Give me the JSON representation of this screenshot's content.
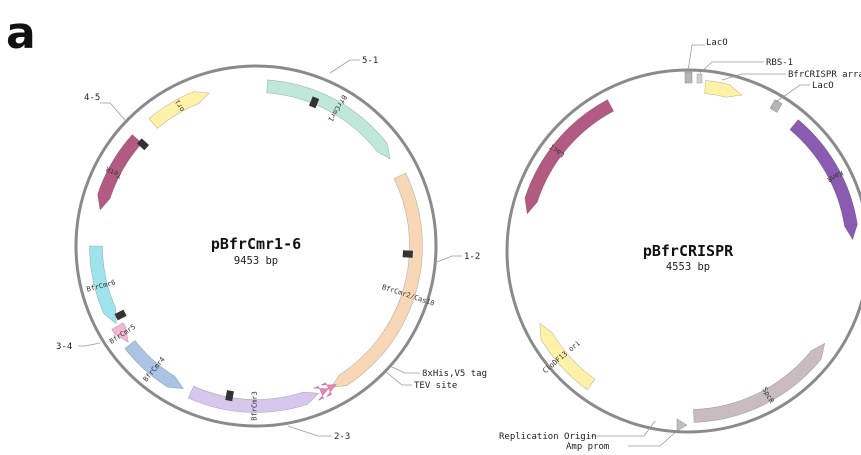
{
  "panel_label": "a",
  "colors": {
    "backbone": "#8a8a8a",
    "BfrCmr1": "#bfe8da",
    "BfrCmr2": "#f7d7b5",
    "BfrCmr3": "#d7c6ee",
    "BfrCmr4": "#a9c4e4",
    "BfrCmr5": "#f4b6d4",
    "BfrCmr6": "#9fe3ee",
    "ori": "#fff2a8",
    "TetR": "#b35a82",
    "tag": "#f080b8",
    "cut": "#333333",
    "SpcR": "#c9bcc0",
    "KanR": "#8a5bb0",
    "LacO": "#b5b5b5"
  },
  "plasmid1": {
    "name": "pBfrCmr1-6",
    "size": "9453 bp",
    "features": [
      {
        "label": "BfrCmr1",
        "color_key": "BfrCmr1"
      },
      {
        "label": "BfrCmr2/Cas10",
        "color_key": "BfrCmr2"
      },
      {
        "label": "BfrCmr3",
        "color_key": "BfrCmr3"
      },
      {
        "label": "BfrCmr4",
        "color_key": "BfrCmr4"
      },
      {
        "label": "BfrCmr5",
        "color_key": "BfrCmr5"
      },
      {
        "label": "BfrCmr6",
        "color_key": "BfrCmr6"
      },
      {
        "label": "ori",
        "color_key": "ori"
      },
      {
        "label": "TetR",
        "color_key": "TetR"
      }
    ],
    "callouts": {
      "c51": "5-1",
      "c45": "4-5",
      "c12": "1-2",
      "c34": "3-4",
      "c23": "2-3",
      "tag": "8xHis,V5 tag",
      "tev": "TEV site"
    }
  },
  "plasmid2": {
    "name": "pBfrCRISPR",
    "size": "4553 bp",
    "features": [
      {
        "label": "LacI",
        "color_key": "TetR"
      },
      {
        "label": "CloDF13 ori",
        "color_key": "ori"
      },
      {
        "label": "SpcR",
        "color_key": "SpcR"
      },
      {
        "label": "KanR",
        "color_key": "KanR"
      }
    ],
    "callouts": {
      "laco_top": "LacO",
      "rbs": "RBS-1",
      "array": "BfrCRISPR array",
      "laco_right": "LacO",
      "rep_origin": "Replication Origin",
      "amp_prom": "Amp prom"
    }
  }
}
